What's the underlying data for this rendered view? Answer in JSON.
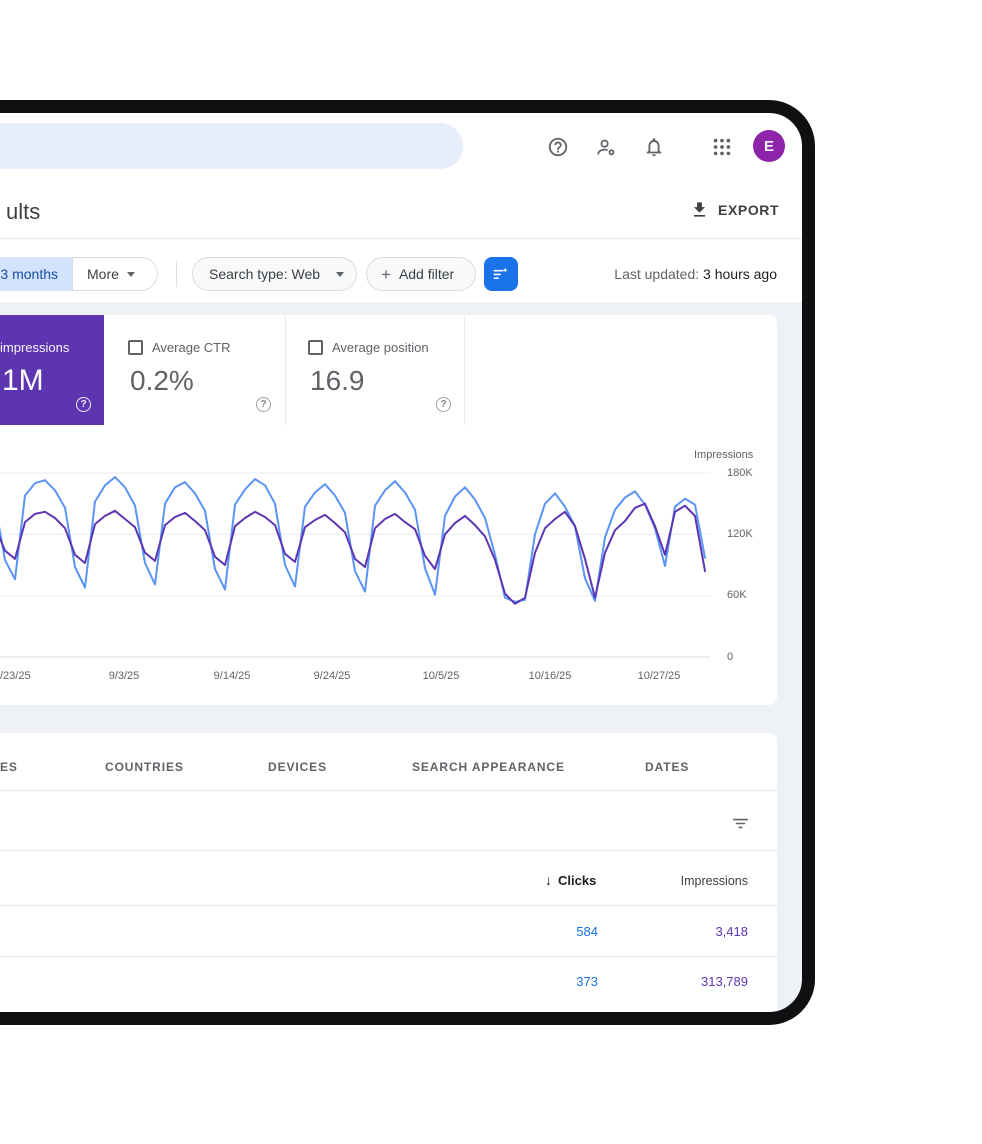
{
  "header": {
    "search_placeholder": "",
    "avatar_letter": "E",
    "avatar_color": "#8e24aa"
  },
  "toolbar": {
    "title_visible": "ults",
    "export_label": "EXPORT"
  },
  "filters": {
    "date_chip_visible": "3 months",
    "more_label": "More",
    "search_type_label": "Search type: Web",
    "plus_sign": "+",
    "add_filter_label": "Add filter",
    "last_updated_label": "Last updated:",
    "last_updated_value": "3 hours ago"
  },
  "metrics": {
    "impressions": {
      "label_visible": "impressions",
      "value_visible": "1M",
      "color": "#5e35b1"
    },
    "avg_ctr": {
      "label": "Average CTR",
      "value": "0.2%"
    },
    "avg_position": {
      "label": "Average position",
      "value": "16.9"
    }
  },
  "chart_data": {
    "type": "line",
    "y_axis_label": "Impressions",
    "y_ticks": [
      "180K",
      "120K",
      "60K",
      "0"
    ],
    "y_max_k": 180,
    "x_ticks": [
      "/23/25",
      "9/3/25",
      "9/14/25",
      "9/24/25",
      "10/5/25",
      "10/16/25",
      "10/27/25"
    ],
    "grid": "horizontal",
    "legend_position": "none",
    "series": [
      {
        "name": "Clicks",
        "color": "#5b94f5",
        "values_k": [
          150,
          95,
          76,
          158,
          170,
          173,
          163,
          146,
          88,
          68,
          152,
          168,
          176,
          166,
          148,
          92,
          71,
          150,
          166,
          171,
          160,
          143,
          86,
          66,
          149,
          164,
          174,
          168,
          150,
          90,
          69,
          147,
          161,
          169,
          158,
          141,
          84,
          64,
          148,
          163,
          172,
          161,
          144,
          87,
          61,
          138,
          157,
          166,
          154,
          136,
          100,
          58,
          54,
          56,
          120,
          150,
          160,
          147,
          128,
          77,
          55,
          117,
          144,
          156,
          162,
          149,
          126,
          89,
          147,
          155,
          149,
          97
        ]
      },
      {
        "name": "Impressions",
        "color": "#5e35b1",
        "values_k": [
          128,
          104,
          96,
          132,
          140,
          142,
          136,
          126,
          100,
          92,
          130,
          138,
          143,
          135,
          127,
          102,
          94,
          129,
          137,
          141,
          133,
          124,
          98,
          90,
          128,
          136,
          142,
          137,
          129,
          101,
          93,
          127,
          134,
          139,
          131,
          122,
          96,
          88,
          126,
          135,
          140,
          132,
          125,
          99,
          86,
          120,
          131,
          138,
          129,
          118,
          95,
          62,
          52,
          58,
          102,
          126,
          135,
          142,
          128,
          96,
          58,
          102,
          124,
          133,
          146,
          150,
          128,
          100,
          142,
          148,
          138,
          84
        ]
      }
    ]
  },
  "table": {
    "tabs_visible": [
      "ES",
      "COUNTRIES",
      "DEVICES",
      "SEARCH APPEARANCE",
      "DATES"
    ],
    "sort_arrow": "↓",
    "col_clicks": "Clicks",
    "col_impressions": "Impressions",
    "rows": [
      {
        "clicks": "584",
        "impressions": "3,418"
      },
      {
        "clicks": "373",
        "impressions": "313,789"
      }
    ]
  }
}
